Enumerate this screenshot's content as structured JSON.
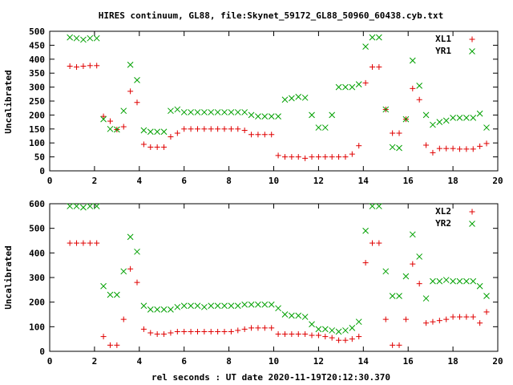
{
  "title": "HIRES continuum, GL88, file:Skynet_59172_GL88_50960_60438.cyb.txt",
  "xlabel": "rel seconds : UT date 2020-11-19T20:12:30.370",
  "colors": {
    "red": "#e00000",
    "green": "#00a000"
  },
  "chart_data": [
    {
      "type": "scatter",
      "ylabel": "Uncalibrated",
      "xlim": [
        0,
        20
      ],
      "ylim": [
        0,
        500
      ],
      "xticks": [
        0,
        2,
        4,
        6,
        8,
        10,
        12,
        14,
        16,
        18,
        20
      ],
      "yticks": [
        0,
        50,
        100,
        150,
        200,
        250,
        300,
        350,
        400,
        450,
        500
      ],
      "legend": "top-right",
      "series": [
        {
          "name": "XL1",
          "color": "#e00000",
          "marker": "plus",
          "x": [
            0.9,
            1.2,
            1.5,
            1.8,
            2.1,
            2.4,
            2.7,
            3.0,
            3.3,
            3.6,
            3.9,
            4.2,
            4.5,
            4.8,
            5.1,
            5.4,
            5.7,
            6.0,
            6.3,
            6.6,
            6.9,
            7.2,
            7.5,
            7.8,
            8.1,
            8.4,
            8.7,
            9.0,
            9.3,
            9.6,
            9.9,
            10.2,
            10.5,
            10.8,
            11.1,
            11.4,
            11.7,
            12.0,
            12.3,
            12.6,
            12.9,
            13.2,
            13.5,
            13.8,
            14.1,
            14.4,
            14.7,
            15.0,
            15.3,
            15.6,
            15.9,
            16.2,
            16.5,
            16.8,
            17.1,
            17.4,
            17.7,
            18.0,
            18.3,
            18.6,
            18.9,
            19.2,
            19.5
          ],
          "y": [
            375,
            372,
            375,
            377,
            377,
            195,
            178,
            148,
            158,
            285,
            245,
            95,
            85,
            85,
            85,
            122,
            135,
            150,
            150,
            150,
            150,
            150,
            150,
            150,
            150,
            150,
            145,
            130,
            130,
            130,
            130,
            55,
            50,
            50,
            50,
            45,
            50,
            50,
            50,
            50,
            50,
            50,
            60,
            90,
            315,
            372,
            372,
            220,
            135,
            135,
            185,
            295,
            255,
            92,
            65,
            80,
            80,
            80,
            78,
            78,
            78,
            88,
            98
          ]
        },
        {
          "name": "YR1",
          "color": "#00a000",
          "marker": "cross",
          "x": [
            0.9,
            1.2,
            1.5,
            1.8,
            2.1,
            2.4,
            2.7,
            3.0,
            3.3,
            3.6,
            3.9,
            4.2,
            4.5,
            4.8,
            5.1,
            5.4,
            5.7,
            6.0,
            6.3,
            6.6,
            6.9,
            7.2,
            7.5,
            7.8,
            8.1,
            8.4,
            8.7,
            9.0,
            9.3,
            9.6,
            9.9,
            10.2,
            10.5,
            10.8,
            11.1,
            11.4,
            11.7,
            12.0,
            12.3,
            12.6,
            12.9,
            13.2,
            13.5,
            13.8,
            14.1,
            14.4,
            14.7,
            15.0,
            15.3,
            15.6,
            15.9,
            16.2,
            16.5,
            16.8,
            17.1,
            17.4,
            17.7,
            18.0,
            18.3,
            18.6,
            18.9,
            19.2,
            19.5
          ],
          "y": [
            478,
            475,
            470,
            475,
            475,
            185,
            150,
            148,
            215,
            380,
            325,
            145,
            140,
            140,
            140,
            215,
            220,
            210,
            210,
            210,
            210,
            210,
            210,
            210,
            210,
            210,
            210,
            200,
            195,
            195,
            195,
            195,
            255,
            260,
            265,
            262,
            200,
            155,
            155,
            200,
            300,
            300,
            300,
            310,
            445,
            478,
            478,
            220,
            85,
            82,
            185,
            395,
            305,
            200,
            165,
            175,
            180,
            190,
            190,
            190,
            190,
            205,
            155
          ]
        }
      ]
    },
    {
      "type": "scatter",
      "ylabel": "Uncalibrated",
      "xlim": [
        0,
        20
      ],
      "ylim": [
        0,
        600
      ],
      "xticks": [
        0,
        2,
        4,
        6,
        8,
        10,
        12,
        14,
        16,
        18,
        20
      ],
      "yticks": [
        0,
        100,
        200,
        300,
        400,
        500,
        600
      ],
      "legend": "top-right",
      "series": [
        {
          "name": "XL2",
          "color": "#e00000",
          "marker": "plus",
          "x": [
            0.9,
            1.2,
            1.5,
            1.8,
            2.1,
            2.4,
            2.7,
            3.0,
            3.3,
            3.6,
            3.9,
            4.2,
            4.5,
            4.8,
            5.1,
            5.4,
            5.7,
            6.0,
            6.3,
            6.6,
            6.9,
            7.2,
            7.5,
            7.8,
            8.1,
            8.4,
            8.7,
            9.0,
            9.3,
            9.6,
            9.9,
            10.2,
            10.5,
            10.8,
            11.1,
            11.4,
            11.7,
            12.0,
            12.3,
            12.6,
            12.9,
            13.2,
            13.5,
            13.8,
            14.1,
            14.4,
            14.7,
            15.0,
            15.3,
            15.6,
            15.9,
            16.2,
            16.5,
            16.8,
            17.1,
            17.4,
            17.7,
            18.0,
            18.3,
            18.6,
            18.9,
            19.2,
            19.5
          ],
          "y": [
            440,
            440,
            440,
            440,
            440,
            60,
            25,
            25,
            130,
            335,
            280,
            90,
            75,
            70,
            70,
            75,
            80,
            80,
            80,
            80,
            80,
            80,
            80,
            80,
            80,
            85,
            90,
            95,
            95,
            95,
            95,
            70,
            70,
            70,
            70,
            70,
            65,
            65,
            60,
            55,
            45,
            45,
            50,
            60,
            360,
            440,
            440,
            130,
            25,
            25,
            130,
            355,
            275,
            115,
            120,
            125,
            130,
            140,
            140,
            140,
            140,
            115,
            160
          ]
        },
        {
          "name": "YR2",
          "color": "#00a000",
          "marker": "cross",
          "x": [
            0.9,
            1.2,
            1.5,
            1.8,
            2.1,
            2.4,
            2.7,
            3.0,
            3.3,
            3.6,
            3.9,
            4.2,
            4.5,
            4.8,
            5.1,
            5.4,
            5.7,
            6.0,
            6.3,
            6.6,
            6.9,
            7.2,
            7.5,
            7.8,
            8.1,
            8.4,
            8.7,
            9.0,
            9.3,
            9.6,
            9.9,
            10.2,
            10.5,
            10.8,
            11.1,
            11.4,
            11.7,
            12.0,
            12.3,
            12.6,
            12.9,
            13.2,
            13.5,
            13.8,
            14.1,
            14.4,
            14.7,
            15.0,
            15.3,
            15.6,
            15.9,
            16.2,
            16.5,
            16.8,
            17.1,
            17.4,
            17.7,
            18.0,
            18.3,
            18.6,
            18.9,
            19.2,
            19.5
          ],
          "y": [
            590,
            590,
            585,
            590,
            590,
            265,
            230,
            230,
            325,
            465,
            405,
            185,
            170,
            170,
            170,
            170,
            180,
            185,
            185,
            185,
            180,
            185,
            185,
            185,
            185,
            185,
            190,
            190,
            190,
            190,
            190,
            175,
            150,
            145,
            145,
            140,
            110,
            90,
            90,
            85,
            80,
            85,
            95,
            120,
            490,
            590,
            590,
            325,
            225,
            225,
            305,
            475,
            385,
            215,
            285,
            285,
            290,
            285,
            285,
            285,
            285,
            265,
            225
          ]
        }
      ]
    }
  ]
}
